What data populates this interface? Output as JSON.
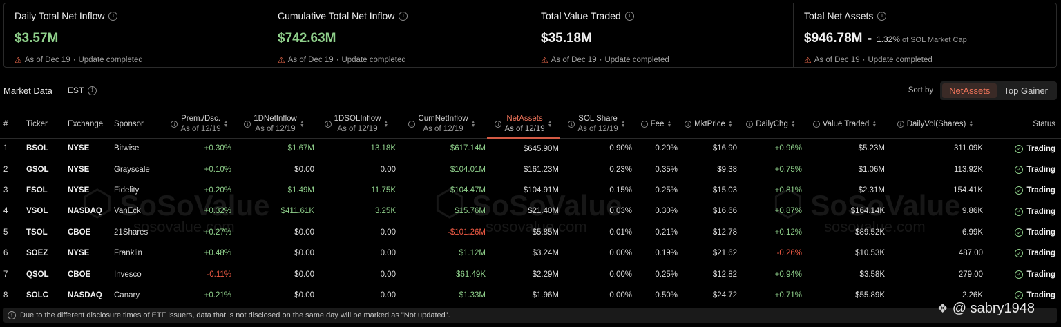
{
  "summary": [
    {
      "title": "Daily Total Net Inflow",
      "value": "$3.57M",
      "note": "As of Dec 19",
      "status": "Update completed"
    },
    {
      "title": "Cumulative Total Net Inflow",
      "value": "$742.63M",
      "note": "As of Dec 19",
      "status": "Update completed"
    },
    {
      "title": "Total Value Traded",
      "value": "$35.18M",
      "note": "As of Dec 19",
      "status": "Update completed"
    },
    {
      "title": "Total Net Assets",
      "value": "$946.78M",
      "pct": "1.32%",
      "pct_text": "of SOL Market Cap",
      "note": "As of Dec 19",
      "status": "Update completed"
    }
  ],
  "toolbar": {
    "title": "Market Data",
    "timezone": "EST",
    "sort_by": "Sort by",
    "sort_options": [
      "NetAssets",
      "Top Gainer"
    ]
  },
  "columns": {
    "idx": "#",
    "ticker": "Ticker",
    "exchange": "Exchange",
    "sponsor": "Sponsor",
    "prem": "Prem./Dsc.",
    "inflow": "1DNetInflow",
    "solinflow": "1DSOLInflow",
    "cum": "CumNetInflow",
    "assets": "NetAssets",
    "share": "SOL Share",
    "fee": "Fee",
    "price": "MktPrice",
    "chg": "DailyChg",
    "traded": "Value Traded",
    "vol": "DailyVol(Shares)",
    "status": "Status",
    "asof": "As of 12/19"
  },
  "rows": [
    {
      "idx": "1",
      "ticker": "BSOL",
      "exchange": "NYSE",
      "sponsor": "Bitwise",
      "prem": "+0.30%",
      "inflow": "$1.67M",
      "solinflow": "13.18K",
      "cum": "$617.14M",
      "assets": "$645.90M",
      "share": "0.90%",
      "fee": "0.20%",
      "price": "$16.90",
      "chg": "+0.96%",
      "traded": "$5.23M",
      "vol": "311.09K",
      "status": "Trading"
    },
    {
      "idx": "2",
      "ticker": "GSOL",
      "exchange": "NYSE",
      "sponsor": "Grayscale",
      "prem": "+0.10%",
      "inflow": "$0.00",
      "solinflow": "0.00",
      "cum": "$104.01M",
      "assets": "$161.23M",
      "share": "0.23%",
      "fee": "0.35%",
      "price": "$9.38",
      "chg": "+0.75%",
      "traded": "$1.06M",
      "vol": "113.92K",
      "status": "Trading"
    },
    {
      "idx": "3",
      "ticker": "FSOL",
      "exchange": "NYSE",
      "sponsor": "Fidelity",
      "prem": "+0.20%",
      "inflow": "$1.49M",
      "solinflow": "11.75K",
      "cum": "$104.47M",
      "assets": "$104.91M",
      "share": "0.15%",
      "fee": "0.25%",
      "price": "$15.03",
      "chg": "+0.81%",
      "traded": "$2.31M",
      "vol": "154.41K",
      "status": "Trading"
    },
    {
      "idx": "4",
      "ticker": "VSOL",
      "exchange": "NASDAQ",
      "sponsor": "VanEck",
      "prem": "+0.32%",
      "inflow": "$411.61K",
      "solinflow": "3.25K",
      "cum": "$15.76M",
      "assets": "$21.40M",
      "share": "0.03%",
      "fee": "0.30%",
      "price": "$16.66",
      "chg": "+0.87%",
      "traded": "$164.14K",
      "vol": "9.86K",
      "status": "Trading"
    },
    {
      "idx": "5",
      "ticker": "TSOL",
      "exchange": "CBOE",
      "sponsor": "21Shares",
      "prem": "+0.27%",
      "inflow": "$0.00",
      "solinflow": "0.00",
      "cum": "-$101.26M",
      "assets": "$5.85M",
      "share": "0.01%",
      "fee": "0.21%",
      "price": "$12.78",
      "chg": "+0.12%",
      "traded": "$89.52K",
      "vol": "6.99K",
      "status": "Trading"
    },
    {
      "idx": "6",
      "ticker": "SOEZ",
      "exchange": "NYSE",
      "sponsor": "Franklin",
      "prem": "+0.48%",
      "inflow": "$0.00",
      "solinflow": "0.00",
      "cum": "$1.12M",
      "assets": "$3.24M",
      "share": "0.00%",
      "fee": "0.19%",
      "price": "$21.62",
      "chg": "-0.26%",
      "traded": "$10.53K",
      "vol": "487.00",
      "status": "Trading"
    },
    {
      "idx": "7",
      "ticker": "QSOL",
      "exchange": "CBOE",
      "sponsor": "Invesco",
      "prem": "-0.11%",
      "inflow": "$0.00",
      "solinflow": "0.00",
      "cum": "$61.49K",
      "assets": "$2.29M",
      "share": "0.00%",
      "fee": "0.25%",
      "price": "$12.82",
      "chg": "+0.94%",
      "traded": "$3.58K",
      "vol": "279.00",
      "status": "Trading"
    },
    {
      "idx": "8",
      "ticker": "SOLC",
      "exchange": "NASDAQ",
      "sponsor": "Canary",
      "prem": "+0.21%",
      "inflow": "$0.00",
      "solinflow": "0.00",
      "cum": "$1.33M",
      "assets": "$1.96M",
      "share": "0.00%",
      "fee": "0.50%",
      "price": "$24.72",
      "chg": "+0.71%",
      "traded": "$55.89K",
      "vol": "2.26K",
      "status": "Trading"
    }
  ],
  "footnote": "Due to the different disclosure times of ETF issuers, data that is not disclosed on the same day will be marked as \"Not updated\".",
  "watermark": {
    "name": "SoSoValue",
    "url": "sosovalue.com"
  },
  "handle": "@ sabry1948",
  "colors": {
    "positive": "#8fd08b",
    "negative": "#ef5a44",
    "accent": "#f0745a"
  }
}
